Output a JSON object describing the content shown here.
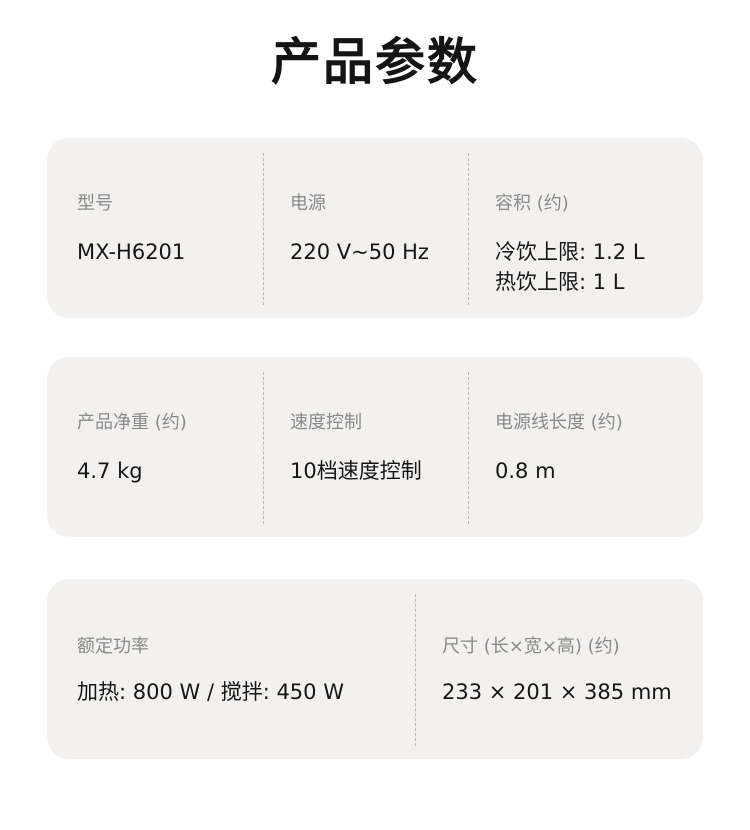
{
  "title": "产品参数",
  "cards": [
    {
      "items": [
        {
          "label": "型号",
          "value": "MX-H6201"
        },
        {
          "label": "电源",
          "value": "220 V~50 Hz"
        },
        {
          "label": "容积 (约)",
          "value": "冷饮上限: 1.2 L",
          "value2": "热饮上限: 1 L"
        }
      ]
    },
    {
      "items": [
        {
          "label": "产品净重 (约)",
          "value": "4.7 kg"
        },
        {
          "label": "速度控制",
          "value": "10档速度控制"
        },
        {
          "label": "电源线长度 (约)",
          "value": "0.8 m"
        }
      ]
    },
    {
      "items": [
        {
          "label": "额定功率",
          "value": "加热: 800 W / 搅拌: 450 W"
        },
        {
          "label": "尺寸 (长×宽×高) (约)",
          "value": "233 × 201 × 385 mm"
        }
      ]
    }
  ]
}
